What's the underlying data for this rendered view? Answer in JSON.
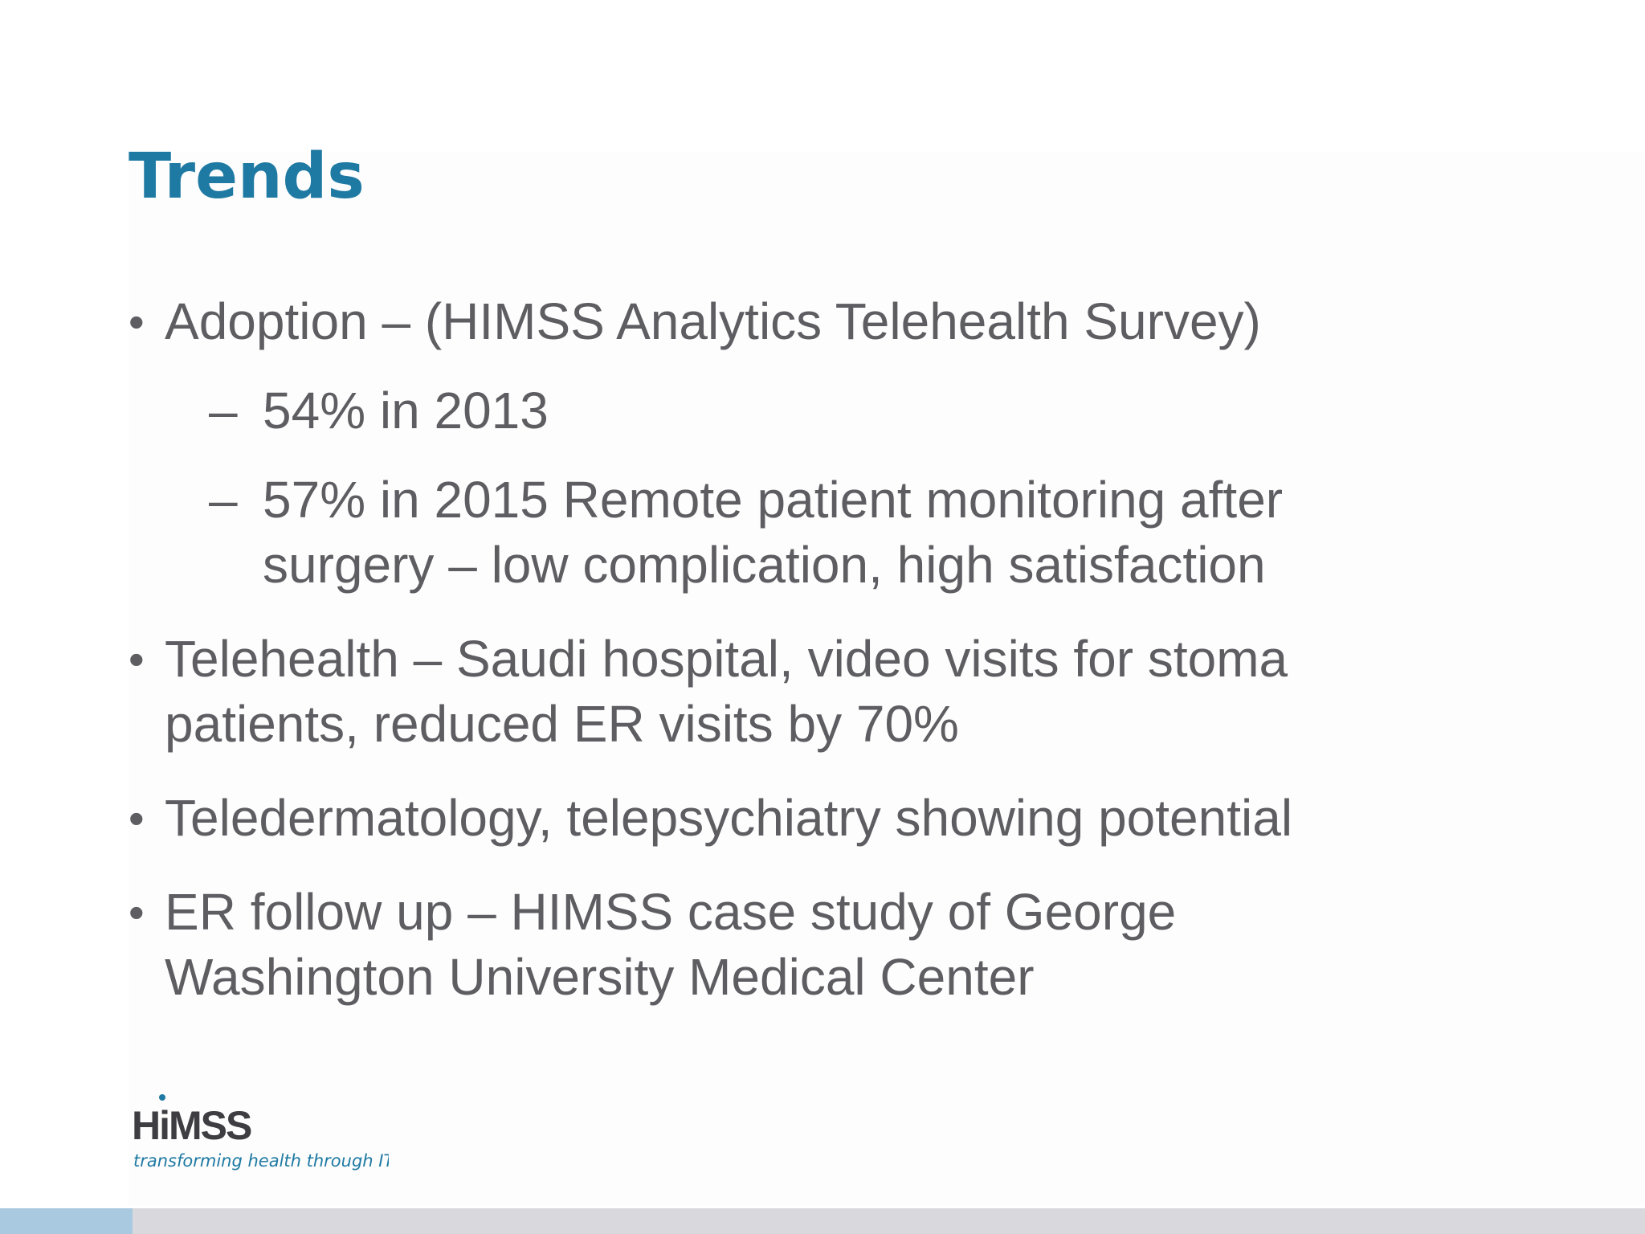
{
  "slide": {
    "title": "Trends",
    "bullets": [
      {
        "mark": "•",
        "text": "Adoption – (HIMSS Analytics Telehealth Survey)",
        "subs": [
          {
            "mark": "–",
            "text": "54% in 2013"
          },
          {
            "mark": "–",
            "text": "57% in 2015 Remote patient monitoring after surgery – low complication, high satisfaction"
          }
        ]
      },
      {
        "mark": "•",
        "text": "Telehealth – Saudi hospital, video visits for stoma patients, reduced ER visits by 70%"
      },
      {
        "mark": "•",
        "text": "Teledermatology, telepsychiatry showing potential"
      },
      {
        "mark": "•",
        "text": "ER follow up – HIMSS case study of George Washington University Medical Center"
      }
    ]
  },
  "logo": {
    "name": "HiMSS",
    "tagline": "transforming health through IT™"
  },
  "colors": {
    "title": "#1f7aa3",
    "body_text": "#5e5d62",
    "logo_text": "#3d3d42",
    "logo_accent": "#1f7aa3",
    "bar_left": "#a9c9e1",
    "bar_right": "#d9d9dd"
  }
}
